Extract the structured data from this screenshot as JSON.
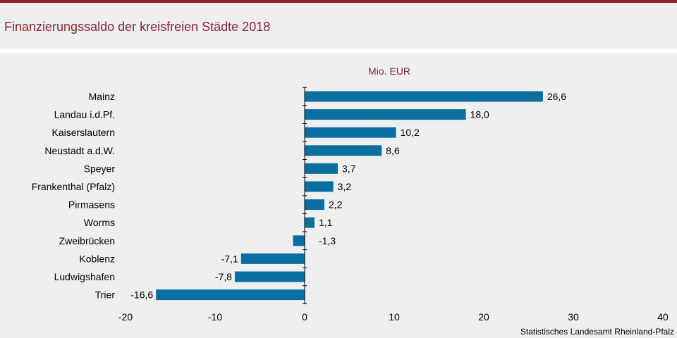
{
  "header": {
    "title": "Finanzierungssaldo der kreisfreien Städte 2018"
  },
  "footer": {
    "source": "Statistisches Landesamt Rheinland-Pfalz"
  },
  "chart_data": {
    "type": "bar",
    "orientation": "horizontal",
    "unit_label": "Mio. EUR",
    "categories": [
      "Mainz",
      "Landau i.d.Pf.",
      "Kaiserslautern",
      "Neustadt a.d.W.",
      "Speyer",
      "Frankenthal (Pfalz)",
      "Pirmasens",
      "Worms",
      "Zweibrücken",
      "Koblenz",
      "Ludwigshafen",
      "Trier"
    ],
    "values": [
      26.6,
      18.0,
      10.2,
      8.6,
      3.7,
      3.2,
      2.2,
      1.1,
      -1.3,
      -7.1,
      -7.8,
      -16.6
    ],
    "value_labels": [
      "26,6",
      "18,0",
      "10,2",
      "8,6",
      "3,7",
      "3,2",
      "2,2",
      "1,1",
      "-1,3",
      "-7,1",
      "-7,8",
      "-16,6"
    ],
    "xlim": [
      -20,
      40
    ],
    "xticks": [
      -20,
      -10,
      0,
      10,
      20,
      30,
      40
    ],
    "bar_color": "#0a6fa0",
    "grid": false
  }
}
